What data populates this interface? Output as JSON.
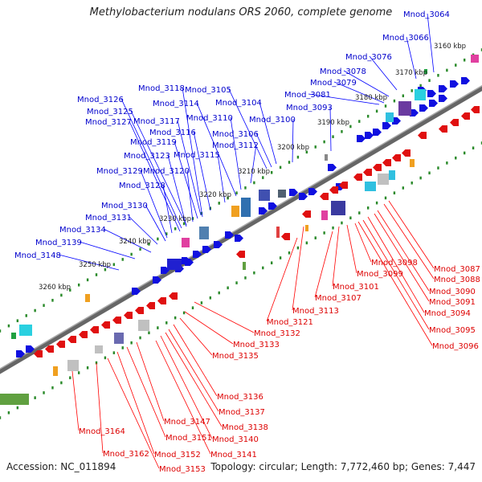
{
  "title": "Methylobacterium nodulans ORS 2060, complete genome",
  "footer": {
    "accession": "Accession: NC_011894",
    "summary": "Topology: circular; Length: 7,772,460 bp; Genes: 7,447"
  },
  "colors": {
    "forward": "#1010e0",
    "reverse": "#e01010",
    "forward_label": "#0000cc",
    "reverse_label": "#dd0000",
    "backbone": "#888888",
    "tick": "#2a8a2a"
  },
  "scale_ticks": [
    "3160 kbp",
    "3170 kbp",
    "3180 kbp",
    "3190 kbp",
    "3200 kbp",
    "3210 kbp",
    "3220 kbp",
    "3230 kbp",
    "3240 kbp",
    "3250 kbp",
    "3260 kbp"
  ],
  "forward_genes": [
    "Mnod_3064",
    "Mnod_3066",
    "Mnod_3076",
    "Mnod_3078",
    "Mnod_3079",
    "Mnod_3081",
    "Mnod_3093",
    "Mnod_3100",
    "Mnod_3104",
    "Mnod_3105",
    "Mnod_3106",
    "Mnod_3110",
    "Mnod_3112",
    "Mnod_3114",
    "Mnod_3115",
    "Mnod_3116",
    "Mnod_3117",
    "Mnod_3118",
    "Mnod_3119",
    "Mnod_3120",
    "Mnod_3123",
    "Mnod_3125",
    "Mnod_3126",
    "Mnod_3127",
    "Mnod_3128",
    "Mnod_3129",
    "Mnod_3130",
    "Mnod_3131",
    "Mnod_3134",
    "Mnod_3139",
    "Mnod_3148"
  ],
  "reverse_genes": [
    "Mnod_3087",
    "Mnod_3088",
    "Mnod_3090",
    "Mnod_3091",
    "Mnod_3094",
    "Mnod_3095",
    "Mnod_3096",
    "Mnod_3098",
    "Mnod_3099",
    "Mnod_3101",
    "Mnod_3107",
    "Mnod_3113",
    "Mnod_3121",
    "Mnod_3132",
    "Mnod_3133",
    "Mnod_3135",
    "Mnod_3136",
    "Mnod_3137",
    "Mnod_3138",
    "Mnod_3140",
    "Mnod_3141",
    "Mnod_3147",
    "Mnod_3151",
    "Mnod_3152",
    "Mnod_3153",
    "Mnod_3162",
    "Mnod_3164"
  ]
}
